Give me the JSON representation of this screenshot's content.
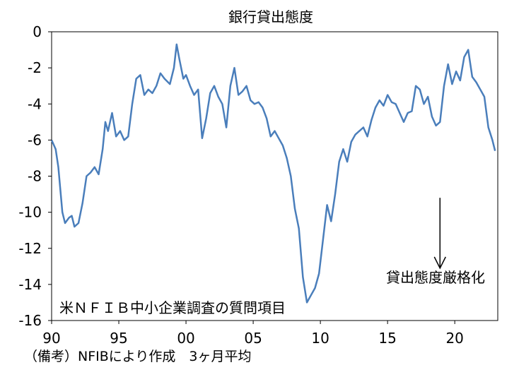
{
  "chart_data": {
    "type": "line",
    "title": "銀行貸出態度",
    "xlabel": "",
    "ylabel": "",
    "x_tick_labels": [
      "90",
      "95",
      "00",
      "05",
      "10",
      "15",
      "20"
    ],
    "x_ticks": [
      1990,
      1995,
      2000,
      2005,
      2010,
      2015,
      2020
    ],
    "xlim": [
      1990,
      2023.2
    ],
    "ylim": [
      -16,
      0
    ],
    "y_ticks": [
      0,
      -2,
      -4,
      -6,
      -8,
      -10,
      -12,
      -14,
      -16
    ],
    "y_tick_labels": [
      "0",
      "-2",
      "-4",
      "-6",
      "-8",
      "-10",
      "-12",
      "-14",
      "-16"
    ],
    "grid": false,
    "legend": "none",
    "line_color": "#4a7ebb",
    "series": [
      {
        "x": [
          1990.0,
          1990.3,
          1990.5,
          1990.8,
          1991.0,
          1991.3,
          1991.5,
          1991.7,
          1992.0,
          1992.3,
          1992.6,
          1992.9,
          1993.2,
          1993.5,
          1993.8,
          1994.0,
          1994.2,
          1994.5,
          1994.8,
          1995.1,
          1995.4,
          1995.7,
          1996.0,
          1996.3,
          1996.6,
          1996.9,
          1997.2,
          1997.5,
          1997.8,
          1998.1,
          1998.4,
          1998.8,
          1999.1,
          1999.3,
          1999.5,
          1999.8,
          2000.0,
          2000.3,
          2000.6,
          2000.9,
          2001.2,
          2001.5,
          2001.8,
          2002.1,
          2002.4,
          2002.7,
          2003.0,
          2003.3,
          2003.6,
          2003.9,
          2004.2,
          2004.5,
          2004.8,
          2005.1,
          2005.4,
          2005.7,
          2006.0,
          2006.3,
          2006.6,
          2006.9,
          2007.2,
          2007.5,
          2007.8,
          2008.1,
          2008.4,
          2008.7,
          2009.0,
          2009.3,
          2009.6,
          2009.9,
          2010.2,
          2010.5,
          2010.8,
          2011.1,
          2011.4,
          2011.7,
          2012.0,
          2012.3,
          2012.6,
          2012.9,
          2013.2,
          2013.5,
          2013.8,
          2014.1,
          2014.4,
          2014.7,
          2015.0,
          2015.3,
          2015.6,
          2015.9,
          2016.2,
          2016.5,
          2016.8,
          2017.1,
          2017.4,
          2017.7,
          2018.0,
          2018.3,
          2018.6,
          2018.9,
          2019.2,
          2019.5,
          2019.8,
          2020.1,
          2020.4,
          2020.7,
          2021.0,
          2021.3,
          2021.6,
          2021.9,
          2022.2,
          2022.5,
          2022.8,
          2023.0
        ],
        "values": [
          -6.0,
          -6.5,
          -7.5,
          -10.0,
          -10.6,
          -10.3,
          -10.2,
          -10.8,
          -10.6,
          -9.5,
          -8.0,
          -7.8,
          -7.5,
          -7.9,
          -6.5,
          -5.0,
          -5.5,
          -4.5,
          -5.8,
          -5.5,
          -6.0,
          -5.8,
          -4.0,
          -2.6,
          -2.4,
          -3.5,
          -3.2,
          -3.4,
          -3.0,
          -2.3,
          -2.6,
          -2.9,
          -2.0,
          -0.7,
          -1.5,
          -2.6,
          -2.4,
          -3.0,
          -3.5,
          -3.2,
          -5.9,
          -4.8,
          -3.4,
          -3.0,
          -3.6,
          -4.0,
          -5.3,
          -3.0,
          -2.0,
          -3.5,
          -3.3,
          -3.0,
          -3.8,
          -4.0,
          -3.9,
          -4.2,
          -4.8,
          -5.8,
          -5.5,
          -5.9,
          -6.3,
          -7.0,
          -8.0,
          -9.8,
          -10.9,
          -13.6,
          -15.0,
          -14.6,
          -14.2,
          -13.4,
          -11.5,
          -9.6,
          -10.5,
          -9.0,
          -7.2,
          -6.5,
          -7.2,
          -6.1,
          -5.7,
          -5.5,
          -5.3,
          -5.8,
          -4.9,
          -4.2,
          -3.8,
          -4.1,
          -3.5,
          -3.9,
          -4.0,
          -4.5,
          -5.0,
          -4.5,
          -4.4,
          -3.0,
          -3.2,
          -4.0,
          -3.6,
          -4.7,
          -5.2,
          -5.0,
          -3.0,
          -1.8,
          -2.9,
          -2.2,
          -2.7,
          -1.4,
          -1.0,
          -2.5,
          -2.8,
          -3.2,
          -3.6,
          -5.3,
          -6.0,
          -6.6
        ]
      }
    ],
    "annotations": {
      "arrow_label": "貸出態度厳格化",
      "box_note": "米ＮＦＩＢ中小企業調査の質問項目",
      "arrow": {
        "x": 2018.9,
        "y_from": -9.2,
        "y_to": -13.1
      }
    }
  },
  "footnote": "（備考）NFIBにより作成　3ヶ月平均"
}
